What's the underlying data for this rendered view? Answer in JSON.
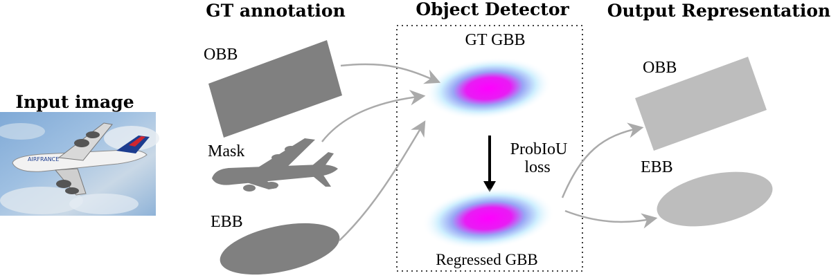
{
  "input": {
    "title": "Input image",
    "plane_text": "AIRFRANCE"
  },
  "gt": {
    "title": "GT annotation",
    "obb_label": "OBB",
    "mask_label": "Mask",
    "ebb_label": "EBB",
    "shape_color": "#808080"
  },
  "detector": {
    "title": "Object Detector",
    "gt_gbb_label": "GT GBB",
    "loss_line1": "ProbIoU",
    "loss_line2": "loss",
    "regressed_label": "Regressed GBB",
    "blob_core_color": "#ff00ff",
    "blob_halo_color": "#cfefff"
  },
  "output": {
    "title": "Output Representation",
    "obb_label": "OBB",
    "ebb_label": "EBB",
    "shape_color": "#bdbdbd"
  },
  "arrow_color": "#aaaaaa"
}
